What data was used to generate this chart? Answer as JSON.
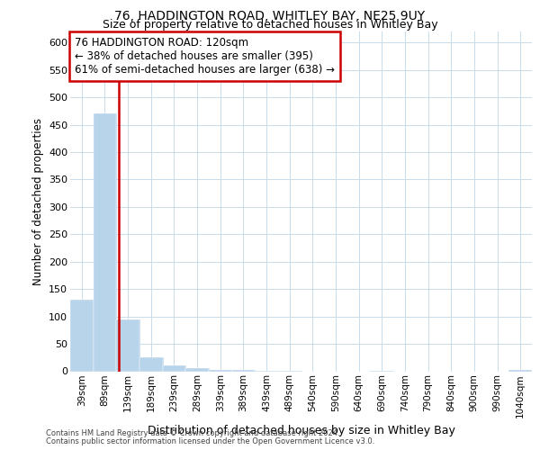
{
  "title": "76, HADDINGTON ROAD, WHITLEY BAY, NE25 9UY",
  "subtitle": "Size of property relative to detached houses in Whitley Bay",
  "xlabel": "Distribution of detached houses by size in Whitley Bay",
  "ylabel": "Number of detached properties",
  "annotation_line1": "76 HADDINGTON ROAD: 120sqm",
  "annotation_line2": "← 38% of detached houses are smaller (395)",
  "annotation_line3": "61% of semi-detached houses are larger (638) →",
  "property_size_sqm": 120,
  "categories": [
    "39sqm",
    "89sqm",
    "139sqm",
    "189sqm",
    "239sqm",
    "289sqm",
    "339sqm",
    "389sqm",
    "439sqm",
    "489sqm",
    "540sqm",
    "590sqm",
    "640sqm",
    "690sqm",
    "740sqm",
    "790sqm",
    "840sqm",
    "900sqm",
    "990sqm",
    "1040sqm"
  ],
  "values": [
    130,
    470,
    95,
    25,
    10,
    5,
    3,
    2,
    1,
    1,
    0,
    0,
    0,
    1,
    0,
    0,
    0,
    0,
    0,
    2
  ],
  "bar_color": "#b8d4ea",
  "property_line_color": "#cc0000",
  "annotation_box_color": "#cc0000",
  "background_color": "#ffffff",
  "grid_color": "#c8dcea",
  "ylim": [
    0,
    620
  ],
  "yticks": [
    0,
    50,
    100,
    150,
    200,
    250,
    300,
    350,
    400,
    450,
    500,
    550,
    600
  ],
  "footer_line1": "Contains HM Land Registry data © Crown copyright and database right 2024.",
  "footer_line2": "Contains public sector information licensed under the Open Government Licence v3.0."
}
